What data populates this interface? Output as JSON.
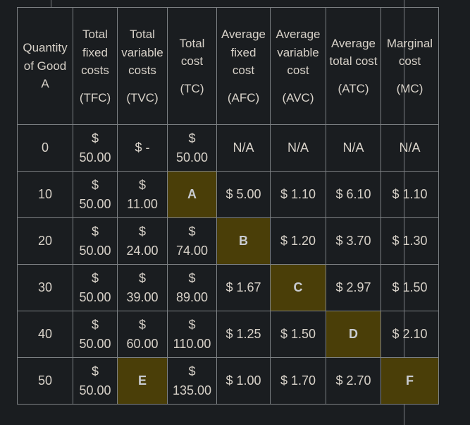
{
  "colors": {
    "page_background": "#1a1d20",
    "cell_border": "#7d8184",
    "grid_line": "#7a7e82",
    "text": "#d7d1c8",
    "highlight_background": "#4a3e08",
    "highlight_text": "#c9ccd2"
  },
  "table": {
    "columns": [
      {
        "id": "quantity",
        "title": "Quantity of Good A",
        "abbr": ""
      },
      {
        "id": "tfc",
        "title": "Total fixed costs",
        "abbr": "(TFC)"
      },
      {
        "id": "tvc",
        "title": "Total variable costs",
        "abbr": "(TVC)"
      },
      {
        "id": "tc",
        "title": "Total cost",
        "abbr": "(TC)"
      },
      {
        "id": "afc",
        "title": "Average fixed cost",
        "abbr": "(AFC)"
      },
      {
        "id": "avc",
        "title": "Average variable cost",
        "abbr": "(AVC)"
      },
      {
        "id": "atc",
        "title": "Average total cost",
        "abbr": "(ATC)"
      },
      {
        "id": "mc",
        "title": "Marginal cost",
        "abbr": "(MC)"
      }
    ],
    "rows": [
      {
        "quantity": "0",
        "tfc": [
          "$",
          "50.00"
        ],
        "tvc": "$ -",
        "tc": [
          "$",
          "50.00"
        ],
        "afc": "N/A",
        "avc": "N/A",
        "atc": "N/A",
        "mc": "N/A"
      },
      {
        "quantity": "10",
        "tfc": [
          "$",
          "50.00"
        ],
        "tvc": [
          "$",
          "11.00"
        ],
        "tc": {
          "blank": "A"
        },
        "afc": "$ 5.00",
        "avc": "$ 1.10",
        "atc": "$ 6.10",
        "mc": "$ 1.10"
      },
      {
        "quantity": "20",
        "tfc": [
          "$",
          "50.00"
        ],
        "tvc": [
          "$",
          "24.00"
        ],
        "tc": [
          "$",
          "74.00"
        ],
        "afc": {
          "blank": "B"
        },
        "avc": "$ 1.20",
        "atc": "$ 3.70",
        "mc": "$ 1.30"
      },
      {
        "quantity": "30",
        "tfc": [
          "$",
          "50.00"
        ],
        "tvc": [
          "$",
          "39.00"
        ],
        "tc": [
          "$",
          "89.00"
        ],
        "afc": "$ 1.67",
        "avc": {
          "blank": "C"
        },
        "atc": "$ 2.97",
        "mc": "$ 1.50"
      },
      {
        "quantity": "40",
        "tfc": [
          "$",
          "50.00"
        ],
        "tvc": [
          "$",
          "60.00"
        ],
        "tc": [
          "$",
          "110.00"
        ],
        "afc": "$ 1.25",
        "avc": "$ 1.50",
        "atc": {
          "blank": "D"
        },
        "mc": "$ 2.10"
      },
      {
        "quantity": "50",
        "tfc": [
          "$",
          "50.00"
        ],
        "tvc": {
          "blank": "E"
        },
        "tc": [
          "$",
          "135.00"
        ],
        "afc": "$ 1.00",
        "avc": "$ 1.70",
        "atc": "$ 2.70",
        "mc": {
          "blank": "F"
        }
      }
    ]
  }
}
